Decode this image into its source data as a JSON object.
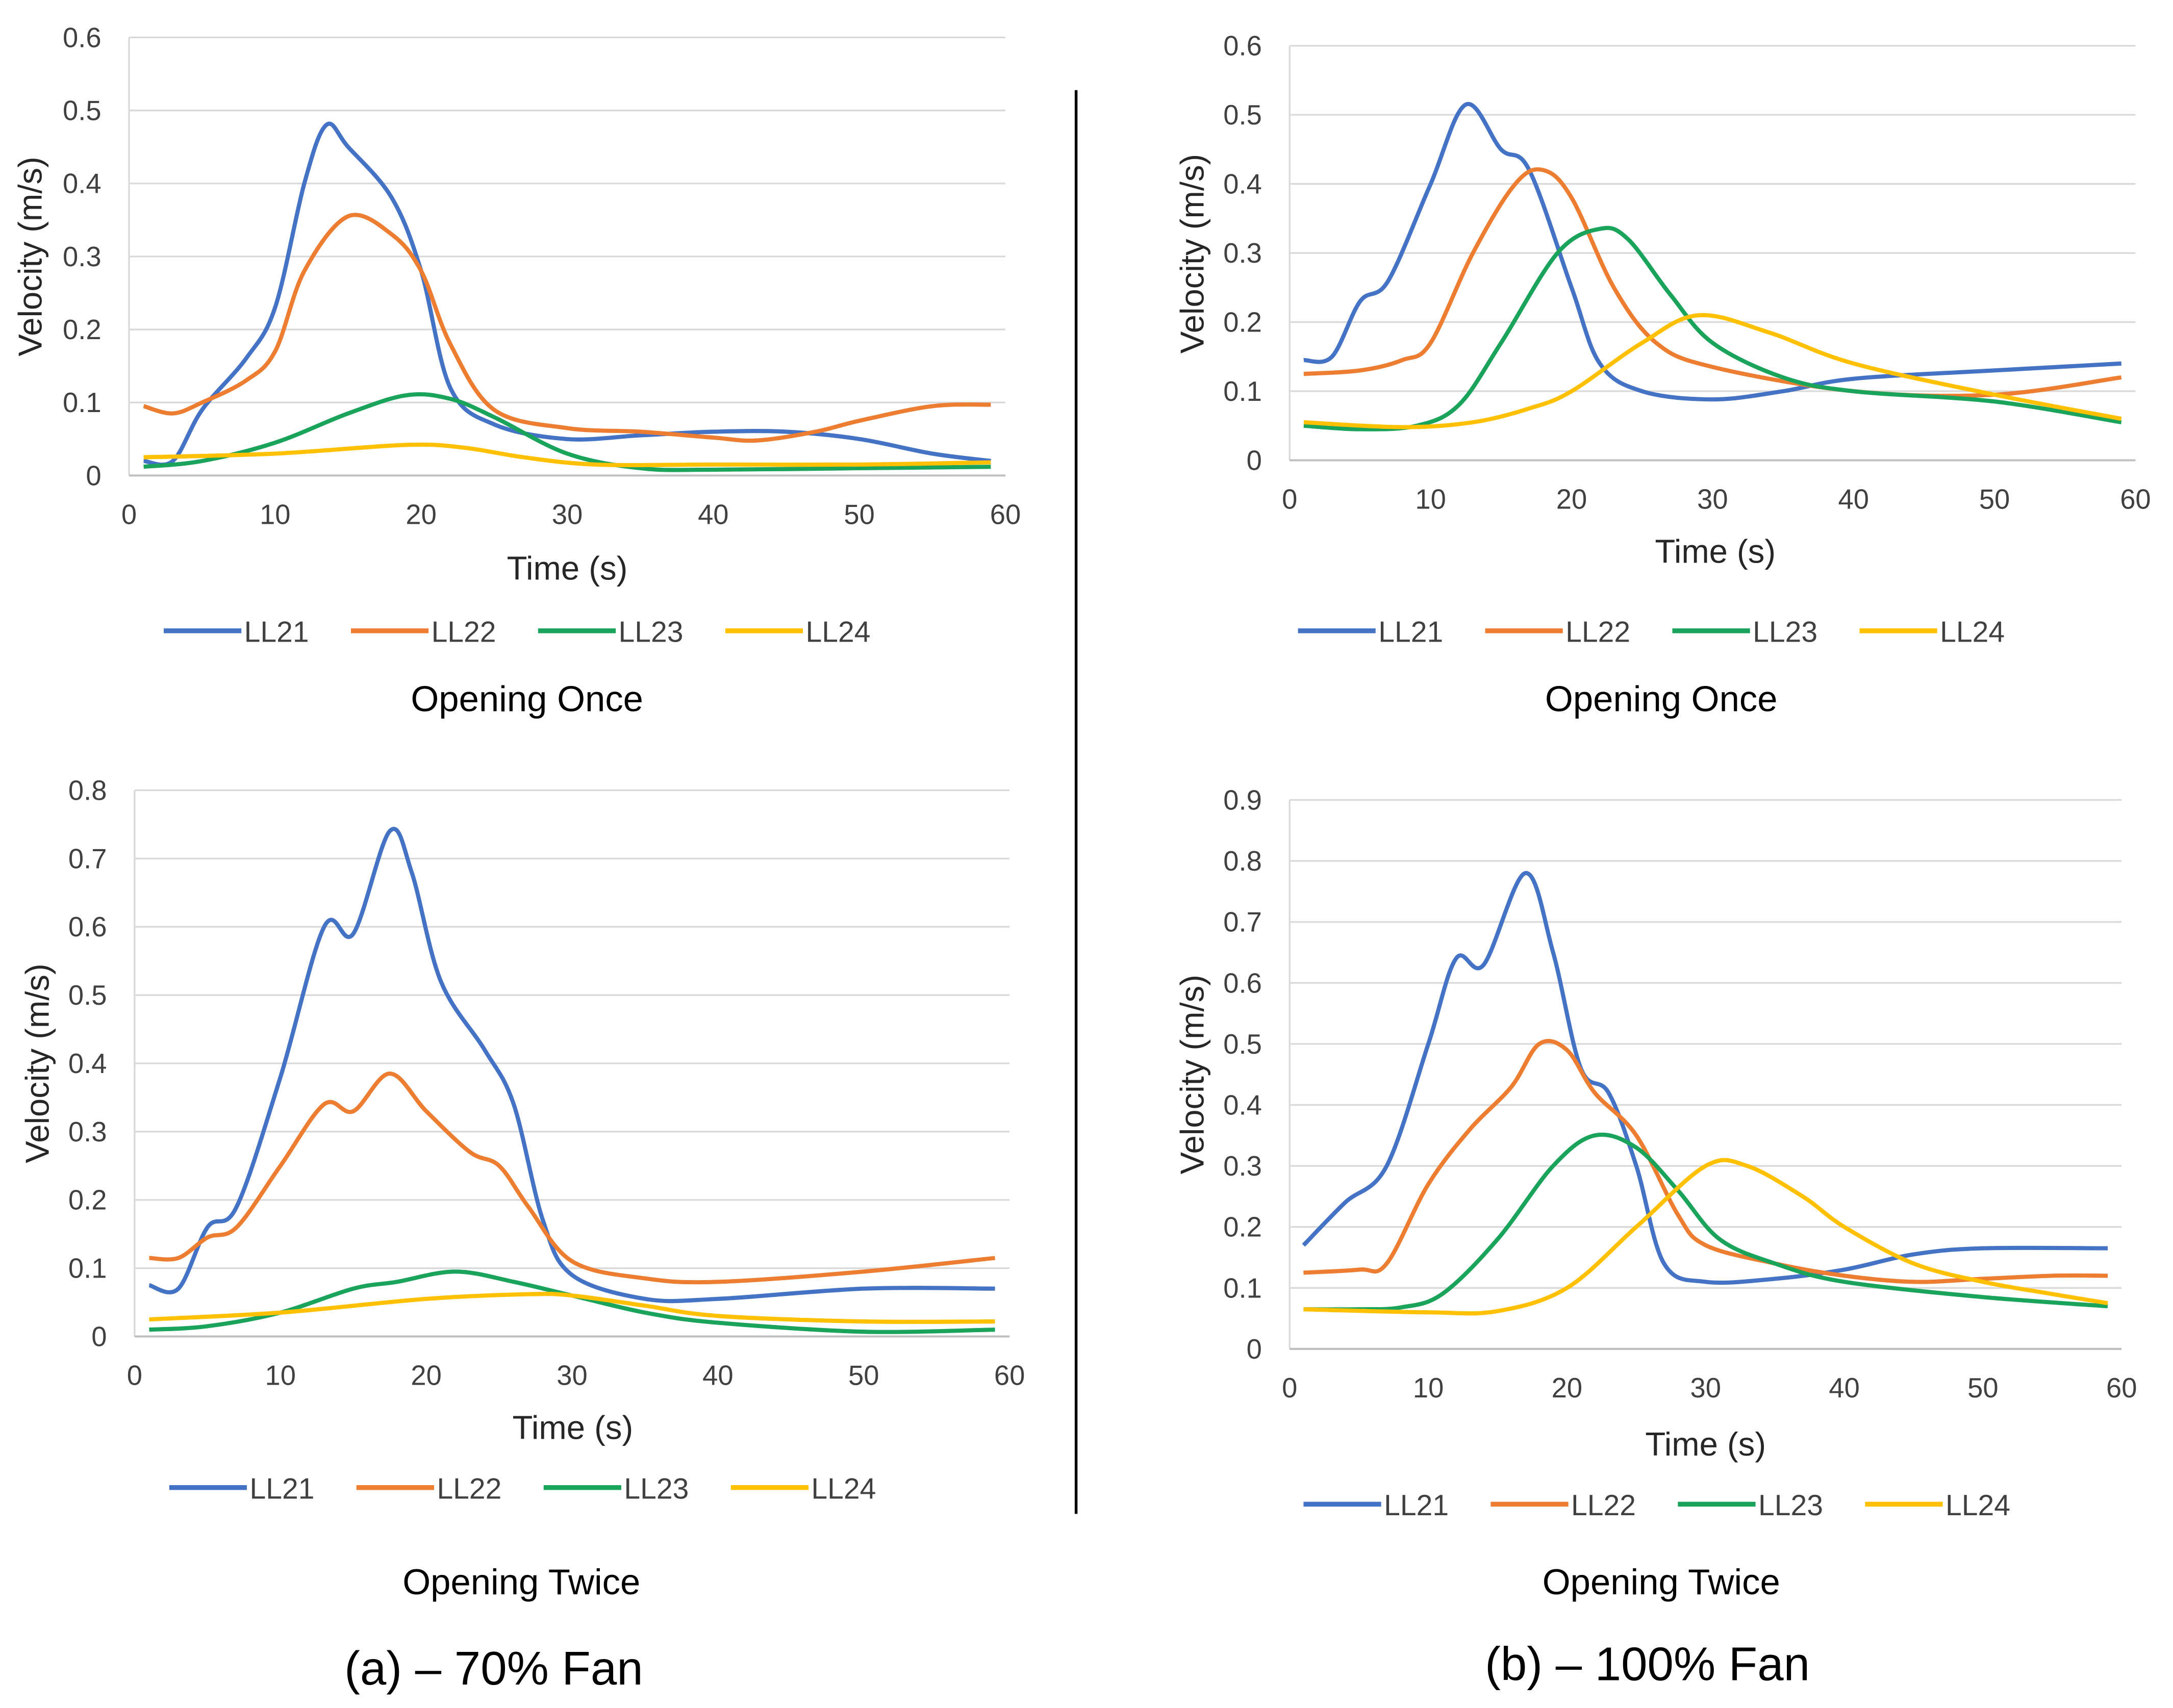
{
  "colors": {
    "LL21": "#4472C4",
    "LL22": "#ED7D31",
    "LL23": "#1AA35A",
    "LL24": "#FFC000"
  },
  "captions": {
    "a": "(a) – 70% Fan",
    "b": "(b) – 100% Fan"
  },
  "chart_data": [
    {
      "id": "a1",
      "type": "line",
      "title": "Opening Once",
      "xlabel": "Time (s)",
      "ylabel": "Velocity (m/s)",
      "xlim": [
        0,
        60
      ],
      "ylim": [
        0,
        0.6
      ],
      "ystep": 0.1,
      "xticks": [
        "0",
        "10",
        "20",
        "30",
        "40",
        "50",
        "60"
      ],
      "yticks": [
        "0",
        "0.1",
        "0.2",
        "0.3",
        "0.4",
        "0.5",
        "0.6"
      ],
      "grid": true,
      "legend": "bottom",
      "series": [
        {
          "name": "LL21",
          "x": [
            1,
            3,
            5,
            8,
            10,
            12,
            13.5,
            15,
            18,
            20,
            22,
            25,
            30,
            35,
            40,
            45,
            50,
            55,
            59
          ],
          "y": [
            0.02,
            0.02,
            0.09,
            0.16,
            0.23,
            0.4,
            0.48,
            0.45,
            0.38,
            0.28,
            0.12,
            0.07,
            0.05,
            0.055,
            0.06,
            0.06,
            0.05,
            0.03,
            0.02
          ]
        },
        {
          "name": "LL22",
          "x": [
            1,
            3,
            5,
            8,
            10,
            12,
            15,
            18,
            20,
            22,
            25,
            30,
            35,
            40,
            43,
            47,
            50,
            55,
            59
          ],
          "y": [
            0.095,
            0.085,
            0.1,
            0.13,
            0.17,
            0.28,
            0.355,
            0.33,
            0.28,
            0.18,
            0.09,
            0.065,
            0.06,
            0.052,
            0.048,
            0.06,
            0.075,
            0.095,
            0.097
          ]
        },
        {
          "name": "LL23",
          "x": [
            1,
            5,
            10,
            15,
            19,
            22,
            25,
            30,
            35,
            40,
            50,
            59
          ],
          "y": [
            0.012,
            0.02,
            0.045,
            0.085,
            0.11,
            0.105,
            0.08,
            0.03,
            0.01,
            0.008,
            0.01,
            0.012
          ]
        },
        {
          "name": "LL24",
          "x": [
            1,
            10,
            19,
            23,
            27,
            32,
            40,
            50,
            59
          ],
          "y": [
            0.025,
            0.03,
            0.042,
            0.038,
            0.025,
            0.015,
            0.015,
            0.015,
            0.018
          ]
        }
      ]
    },
    {
      "id": "b1",
      "type": "line",
      "title": "Opening Once",
      "xlabel": "Time (s)",
      "ylabel": "Velocity (m/s)",
      "xlim": [
        0,
        60
      ],
      "ylim": [
        0,
        0.6
      ],
      "ystep": 0.1,
      "xticks": [
        "0",
        "10",
        "20",
        "30",
        "40",
        "50",
        "60"
      ],
      "yticks": [
        "0",
        "0.1",
        "0.2",
        "0.3",
        "0.4",
        "0.5",
        "0.6"
      ],
      "grid": true,
      "legend": "bottom",
      "series": [
        {
          "name": "LL21",
          "x": [
            1,
            3,
            5,
            7,
            10,
            12.5,
            15,
            17,
            20,
            22,
            25,
            30,
            35,
            40,
            50,
            59
          ],
          "y": [
            0.145,
            0.15,
            0.23,
            0.26,
            0.4,
            0.515,
            0.45,
            0.42,
            0.25,
            0.14,
            0.1,
            0.088,
            0.1,
            0.118,
            0.13,
            0.14
          ]
        },
        {
          "name": "LL22",
          "x": [
            1,
            5,
            8,
            10,
            13,
            16,
            18,
            20,
            23,
            26,
            30,
            40,
            50,
            59
          ],
          "y": [
            0.125,
            0.13,
            0.145,
            0.17,
            0.3,
            0.4,
            0.42,
            0.38,
            0.25,
            0.17,
            0.135,
            0.1,
            0.095,
            0.12
          ]
        },
        {
          "name": "LL23",
          "x": [
            1,
            5,
            9,
            12,
            15,
            19,
            22,
            24,
            27,
            30,
            35,
            40,
            50,
            59
          ],
          "y": [
            0.05,
            0.045,
            0.05,
            0.08,
            0.17,
            0.3,
            0.335,
            0.32,
            0.24,
            0.17,
            0.12,
            0.1,
            0.085,
            0.055
          ]
        },
        {
          "name": "LL24",
          "x": [
            1,
            8,
            13,
            17,
            20,
            25,
            29,
            34,
            40,
            50,
            59
          ],
          "y": [
            0.055,
            0.048,
            0.055,
            0.075,
            0.1,
            0.17,
            0.21,
            0.185,
            0.14,
            0.095,
            0.06
          ]
        }
      ]
    },
    {
      "id": "a2",
      "type": "line",
      "title": "Opening Twice",
      "xlabel": "Time (s)",
      "ylabel": "Velocity (m/s)",
      "xlim": [
        0,
        60
      ],
      "ylim": [
        0,
        0.8
      ],
      "ystep": 0.1,
      "xticks": [
        "0",
        "10",
        "20",
        "30",
        "40",
        "50",
        "60"
      ],
      "yticks": [
        "0",
        "0.1",
        "0.2",
        "0.3",
        "0.4",
        "0.5",
        "0.6",
        "0.7",
        "0.8"
      ],
      "grid": true,
      "legend": "bottom",
      "series": [
        {
          "name": "LL21",
          "x": [
            1,
            3,
            5,
            7,
            10,
            13,
            15,
            17.5,
            19,
            21,
            24,
            26,
            28,
            30,
            35,
            40,
            50,
            59
          ],
          "y": [
            0.075,
            0.07,
            0.16,
            0.19,
            0.38,
            0.6,
            0.59,
            0.74,
            0.68,
            0.52,
            0.42,
            0.34,
            0.17,
            0.09,
            0.055,
            0.055,
            0.07,
            0.07
          ]
        },
        {
          "name": "LL22",
          "x": [
            1,
            3,
            5,
            7,
            10,
            13,
            15,
            17.5,
            20,
            23,
            25,
            27,
            30,
            35,
            40,
            50,
            59
          ],
          "y": [
            0.115,
            0.115,
            0.145,
            0.16,
            0.25,
            0.34,
            0.33,
            0.385,
            0.33,
            0.27,
            0.25,
            0.19,
            0.11,
            0.085,
            0.08,
            0.095,
            0.115
          ]
        },
        {
          "name": "LL23",
          "x": [
            1,
            5,
            10,
            15,
            18,
            22,
            26,
            30,
            35,
            40,
            50,
            59
          ],
          "y": [
            0.01,
            0.015,
            0.035,
            0.07,
            0.08,
            0.095,
            0.08,
            0.06,
            0.035,
            0.02,
            0.007,
            0.01
          ]
        },
        {
          "name": "LL24",
          "x": [
            1,
            10,
            20,
            27,
            30,
            35,
            40,
            50,
            59
          ],
          "y": [
            0.025,
            0.035,
            0.055,
            0.062,
            0.06,
            0.045,
            0.03,
            0.022,
            0.022
          ]
        }
      ]
    },
    {
      "id": "b2",
      "type": "line",
      "title": "Opening Twice",
      "xlabel": "Time (s)",
      "ylabel": "Velocity (m/s)",
      "xlim": [
        0,
        60
      ],
      "ylim": [
        0,
        0.9
      ],
      "ystep": 0.1,
      "xticks": [
        "0",
        "10",
        "20",
        "30",
        "40",
        "50",
        "60"
      ],
      "yticks": [
        "0",
        "0.1",
        "0.2",
        "0.3",
        "0.4",
        "0.5",
        "0.6",
        "0.7",
        "0.8",
        "0.9"
      ],
      "grid": true,
      "legend": "bottom",
      "series": [
        {
          "name": "LL21",
          "x": [
            1,
            4,
            7,
            10,
            12,
            14,
            17,
            19,
            21,
            23,
            25,
            27,
            30,
            35,
            40,
            45,
            50,
            59
          ],
          "y": [
            0.17,
            0.24,
            0.3,
            0.5,
            0.64,
            0.63,
            0.78,
            0.65,
            0.46,
            0.42,
            0.3,
            0.14,
            0.11,
            0.115,
            0.13,
            0.155,
            0.165,
            0.165
          ]
        },
        {
          "name": "LL22",
          "x": [
            1,
            5,
            7,
            10,
            13,
            16,
            18,
            20,
            22,
            25,
            28,
            30,
            35,
            40,
            45,
            50,
            55,
            59
          ],
          "y": [
            0.125,
            0.13,
            0.14,
            0.27,
            0.36,
            0.43,
            0.5,
            0.49,
            0.42,
            0.35,
            0.22,
            0.17,
            0.14,
            0.12,
            0.11,
            0.115,
            0.12,
            0.12
          ]
        },
        {
          "name": "LL23",
          "x": [
            1,
            5,
            8,
            11,
            15,
            19,
            22,
            25,
            28,
            31,
            35,
            40,
            50,
            59
          ],
          "y": [
            0.065,
            0.065,
            0.068,
            0.09,
            0.18,
            0.3,
            0.35,
            0.33,
            0.26,
            0.18,
            0.14,
            0.11,
            0.085,
            0.07
          ]
        },
        {
          "name": "LL24",
          "x": [
            1,
            10,
            15,
            20,
            25,
            30,
            33,
            37,
            40,
            45,
            50,
            55,
            59
          ],
          "y": [
            0.065,
            0.06,
            0.062,
            0.1,
            0.2,
            0.3,
            0.3,
            0.25,
            0.2,
            0.14,
            0.11,
            0.09,
            0.075
          ]
        }
      ]
    }
  ]
}
